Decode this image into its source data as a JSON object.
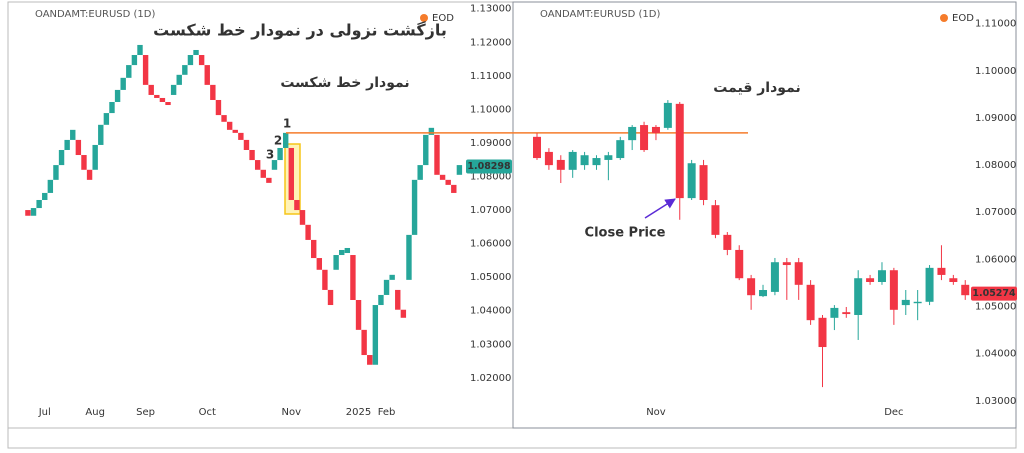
{
  "chart_data": [
    {
      "type": "line_break",
      "header": "OANDAMT:EURUSD (1D)",
      "badge": "EOD",
      "title": "بازگشت نزولی در نمودار خط شکست",
      "subtitle": "نمودار خط شکست",
      "annotations": [
        "1",
        "2",
        "3"
      ],
      "up_color": "#26a69a",
      "down_color": "#f23645",
      "open": [
        1.07,
        1.0683,
        1.0706,
        1.073,
        1.0751,
        1.079,
        1.0834,
        1.0879,
        1.0909,
        1.0909,
        1.0864,
        1.082,
        1.082,
        1.0894,
        1.0954,
        1.0989,
        1.1022,
        1.1058,
        1.1094,
        1.1132,
        1.1162,
        1.1162,
        1.1073,
        1.1043,
        1.1034,
        1.1022,
        1.1043,
        1.1073,
        1.1103,
        1.1132,
        1.1162,
        1.1162,
        1.1132,
        1.1073,
        1.1028,
        1.0983,
        1.0963,
        1.0939,
        1.093,
        1.0909,
        1.0879,
        1.0849,
        1.082,
        1.0796,
        1.082,
        1.0849,
        1.0885,
        1.0885,
        1.073,
        1.07,
        1.0656,
        1.0611,
        1.0557,
        1.0522,
        1.0462,
        1.0522,
        1.0566,
        1.0572,
        1.0566,
        1.0432,
        1.0343,
        1.0268,
        1.0239,
        1.0417,
        1.0447,
        1.0492,
        1.0462,
        1.0403,
        1.0492,
        1.0626,
        1.079,
        1.0834,
        1.0924,
        1.0924,
        1.0805,
        1.079,
        1.0775,
        1.0805
      ],
      "close": [
        1.0683,
        1.0706,
        1.073,
        1.0751,
        1.079,
        1.0834,
        1.0879,
        1.0909,
        1.0939,
        1.0864,
        1.082,
        1.079,
        1.0894,
        1.0954,
        1.0989,
        1.1022,
        1.1058,
        1.1094,
        1.1132,
        1.1162,
        1.1192,
        1.1073,
        1.1043,
        1.1034,
        1.1022,
        1.1013,
        1.1073,
        1.1103,
        1.1132,
        1.1162,
        1.1177,
        1.1132,
        1.1073,
        1.1028,
        1.0983,
        1.0963,
        1.0939,
        1.093,
        1.0909,
        1.0879,
        1.0849,
        1.082,
        1.0796,
        1.0781,
        1.0849,
        1.0885,
        1.093,
        1.073,
        1.07,
        1.0656,
        1.0611,
        1.0557,
        1.0522,
        1.0462,
        1.0417,
        1.0566,
        1.0581,
        1.0587,
        1.0432,
        1.0343,
        1.0268,
        1.0239,
        1.0417,
        1.0447,
        1.0492,
        1.0507,
        1.0403,
        1.0379,
        1.0626,
        1.079,
        1.0834,
        1.0924,
        1.0945,
        1.0805,
        1.079,
        1.0775,
        1.0751,
        1.0834
      ],
      "xlim": [
        -3.2,
        78
      ],
      "xticks": [
        {
          "value": 3,
          "label": "Jul"
        },
        {
          "value": 12,
          "label": "Aug"
        },
        {
          "value": 21,
          "label": "Sep"
        },
        {
          "value": 32,
          "label": "Oct"
        },
        {
          "value": 47,
          "label": "Nov"
        },
        {
          "value": 59,
          "label": "2025"
        },
        {
          "value": 64,
          "label": "Feb"
        }
      ],
      "ylim": [
        1.0134,
        1.1317
      ],
      "yticks": [
        {
          "value": 1.02,
          "label": "1.02000"
        },
        {
          "value": 1.03,
          "label": "1.03000"
        },
        {
          "value": 1.04,
          "label": "1.04000"
        },
        {
          "value": 1.05,
          "label": "1.05000"
        },
        {
          "value": 1.06,
          "label": "1.06000"
        },
        {
          "value": 1.07,
          "label": "1.07000"
        },
        {
          "value": 1.08,
          "label": "1.08000"
        },
        {
          "value": 1.09,
          "label": "1.09000"
        },
        {
          "value": 1.1,
          "label": "1.10000"
        },
        {
          "value": 1.11,
          "label": "1.11000"
        },
        {
          "value": 1.12,
          "label": "1.12000"
        },
        {
          "value": 1.13,
          "label": "1.13000"
        }
      ],
      "last_price": 1.08298,
      "price_tag_color": "#26a69a",
      "reference_line": 1.093,
      "reference_color": "#f57c2b"
    },
    {
      "type": "candlestick",
      "header": "OANDAMT:EURUSD (1D)",
      "badge": "EOD",
      "subtitle": "نمودار قیمت",
      "annotation": "Close Price",
      "up_color": "#26a69a",
      "down_color": "#f23645",
      "open": [
        1.086,
        1.0828,
        1.0811,
        1.079,
        1.08,
        1.08,
        1.0811,
        1.0815,
        1.0853,
        1.0885,
        1.0881,
        1.0879,
        1.093,
        1.073,
        1.08,
        1.0715,
        1.0652,
        1.062,
        1.056,
        1.0522,
        1.0531,
        1.0594,
        1.0594,
        1.0546,
        1.0476,
        1.0476,
        1.0488,
        1.0482,
        1.056,
        1.0552,
        1.0577,
        1.0503,
        1.0507,
        1.051,
        1.0582,
        1.056,
        1.0546
      ],
      "high": [
        1.0868,
        1.0836,
        1.0821,
        1.0832,
        1.0828,
        1.0821,
        1.0828,
        1.086,
        1.0885,
        1.0892,
        1.0885,
        1.0938,
        1.0934,
        1.0811,
        1.0811,
        1.0726,
        1.0658,
        1.063,
        1.0567,
        1.0546,
        1.0603,
        1.0603,
        1.0603,
        1.0556,
        1.0482,
        1.0503,
        1.0499,
        1.0577,
        1.0567,
        1.0594,
        1.0582,
        1.0535,
        1.0535,
        1.0588,
        1.063,
        1.0567,
        1.0556
      ],
      "low": [
        1.0811,
        1.079,
        1.0762,
        1.0773,
        1.079,
        1.079,
        1.0768,
        1.0811,
        1.0832,
        1.0828,
        1.0853,
        1.0875,
        1.0684,
        1.0726,
        1.0715,
        1.0645,
        1.0609,
        1.0556,
        1.0493,
        1.052,
        1.0524,
        1.0514,
        1.0514,
        1.0461,
        1.0329,
        1.045,
        1.0476,
        1.0429,
        1.0546,
        1.0546,
        1.0461,
        1.0482,
        1.0471,
        1.0503,
        1.0556,
        1.0546,
        1.0514
      ],
      "close": [
        1.0815,
        1.08,
        1.079,
        1.0828,
        1.0821,
        1.0815,
        1.0821,
        1.0853,
        1.0881,
        1.0832,
        1.0868,
        1.0932,
        1.073,
        1.0804,
        1.0726,
        1.0652,
        1.062,
        1.056,
        1.0524,
        1.0535,
        1.0594,
        1.0588,
        1.0546,
        1.0471,
        1.0414,
        1.0497,
        1.0484,
        1.056,
        1.0552,
        1.0577,
        1.0493,
        1.0514,
        1.051,
        1.0582,
        1.0567,
        1.0552,
        1.0524
      ],
      "xlim": [
        -1.85,
        36.4
      ],
      "xticks": [
        {
          "value": 10,
          "label": "Nov"
        },
        {
          "value": 30,
          "label": "Dec"
        }
      ],
      "ylim": [
        1.0291,
        1.1144
      ],
      "yticks": [
        {
          "value": 1.03,
          "label": "1.03000"
        },
        {
          "value": 1.04,
          "label": "1.04000"
        },
        {
          "value": 1.05,
          "label": "1.05000"
        },
        {
          "value": 1.06,
          "label": "1.06000"
        },
        {
          "value": 1.07,
          "label": "1.07000"
        },
        {
          "value": 1.08,
          "label": "1.08000"
        },
        {
          "value": 1.09,
          "label": "1.09000"
        },
        {
          "value": 1.1,
          "label": "1.10000"
        },
        {
          "value": 1.11,
          "label": "1.11000"
        }
      ],
      "last_price": 1.05274,
      "price_tag_color": "#f23645"
    }
  ]
}
